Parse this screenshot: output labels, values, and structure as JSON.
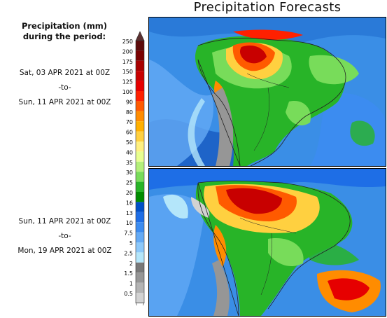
{
  "title": "Precipitation Forecasts",
  "legend": {
    "title_line1": "Precipitation (mm)",
    "title_line2": "during the period:",
    "levels": [
      "250",
      "200",
      "175",
      "150",
      "125",
      "100",
      "90",
      "80",
      "70",
      "60",
      "50",
      "40",
      "35",
      "30",
      "25",
      "20",
      "16",
      "13",
      "10",
      "7.5",
      "5",
      "2.5",
      "2",
      "1.5",
      "1",
      "0.5"
    ],
    "colors": [
      "#5c0a0a",
      "#7a0000",
      "#a80000",
      "#c80000",
      "#e60000",
      "#ff2000",
      "#ff5a00",
      "#ff8c00",
      "#ffb000",
      "#ffd040",
      "#fff080",
      "#e8ff90",
      "#b4f07a",
      "#78dc5a",
      "#28b428",
      "#008c00",
      "#0050c8",
      "#1e6ee6",
      "#3c8cf0",
      "#64aaf5",
      "#8cc8fa",
      "#b4e6fa",
      "#787878",
      "#969696",
      "#b4b4b4",
      "#d2d2d2"
    ],
    "top_arrow_color": "#5c3030"
  },
  "periods": [
    {
      "start": "Sat, 03 APR 2021 at 00Z",
      "sep": "-to-",
      "end": "Sun, 11 APR 2021 at 00Z"
    },
    {
      "start": "Sun, 11 APR 2021 at 00Z",
      "sep": "-to-",
      "end": "Mon, 19 APR 2021 at 00Z"
    }
  ]
}
